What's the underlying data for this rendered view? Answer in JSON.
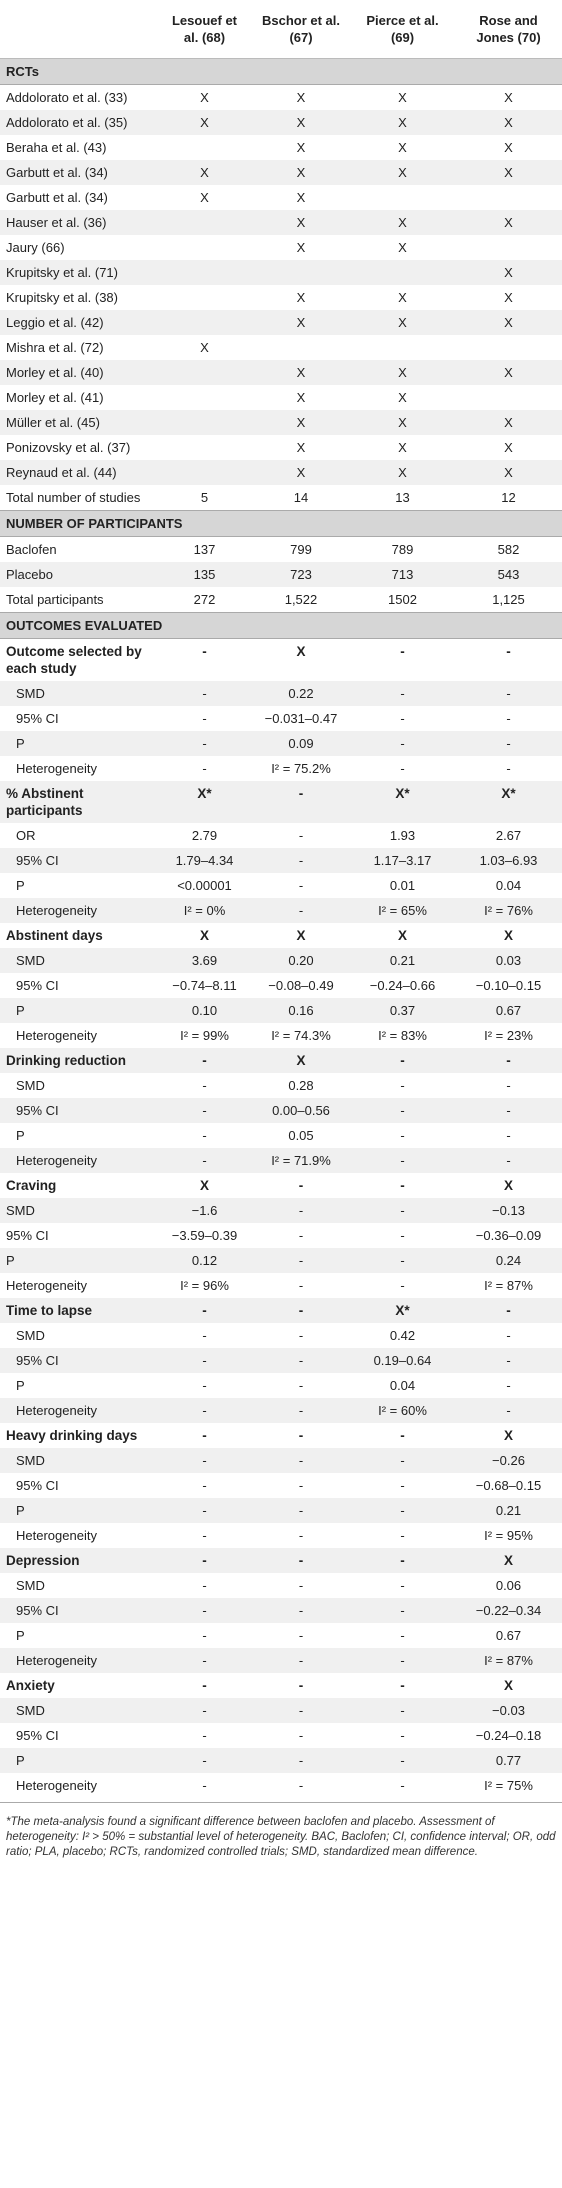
{
  "table": {
    "column_headers": [
      "Lesouef et al. (68)",
      "Bschor et al. (67)",
      "Pierce et al. (69)",
      "Rose and Jones (70)"
    ],
    "sections": [
      {
        "title": "RCTs",
        "rows": [
          {
            "label": "Addolorato et al. (33)",
            "cells": [
              "X",
              "X",
              "X",
              "X"
            ]
          },
          {
            "label": "Addolorato et al. (35)",
            "cells": [
              "X",
              "X",
              "X",
              "X"
            ]
          },
          {
            "label": "Beraha et al. (43)",
            "cells": [
              null,
              "X",
              "X",
              "X"
            ]
          },
          {
            "label": "Garbutt et al. (34)",
            "cells": [
              "X",
              "X",
              "X",
              "X"
            ]
          },
          {
            "label": "Garbutt et al. (34)",
            "cells": [
              "X",
              "X",
              null,
              null
            ]
          },
          {
            "label": "Hauser et al. (36)",
            "cells": [
              null,
              "X",
              "X",
              "X"
            ]
          },
          {
            "label": "Jaury (66)",
            "cells": [
              null,
              "X",
              "X",
              null
            ]
          },
          {
            "label": "Krupitsky et al. (71)",
            "cells": [
              null,
              null,
              null,
              "X"
            ]
          },
          {
            "label": "Krupitsky et al. (38)",
            "cells": [
              null,
              "X",
              "X",
              "X"
            ]
          },
          {
            "label": "Leggio et al. (42)",
            "cells": [
              null,
              "X",
              "X",
              "X"
            ]
          },
          {
            "label": "Mishra et al. (72)",
            "cells": [
              "X",
              null,
              null,
              null
            ]
          },
          {
            "label": "Morley et al. (40)",
            "cells": [
              null,
              "X",
              "X",
              "X"
            ]
          },
          {
            "label": "Morley et al. (41)",
            "cells": [
              null,
              "X",
              "X",
              null
            ]
          },
          {
            "label": "Müller et al. (45)",
            "cells": [
              null,
              "X",
              "X",
              "X"
            ]
          },
          {
            "label": "Ponizovsky et al. (37)",
            "cells": [
              null,
              "X",
              "X",
              "X"
            ]
          },
          {
            "label": "Reynaud et al. (44)",
            "cells": [
              null,
              "X",
              "X",
              "X"
            ]
          },
          {
            "label": "Total number of studies",
            "cells": [
              "5",
              "14",
              "13",
              "12"
            ]
          }
        ]
      },
      {
        "title": "NUMBER OF PARTICIPANTS",
        "rows": [
          {
            "label": "Baclofen",
            "cells": [
              "137",
              "799",
              "789",
              "582"
            ]
          },
          {
            "label": "Placebo",
            "cells": [
              "135",
              "723",
              "713",
              "543"
            ]
          },
          {
            "label": "Total participants",
            "cells": [
              "272",
              "1,522",
              "1502",
              "1,125"
            ]
          }
        ]
      },
      {
        "title": "OUTCOMES EVALUATED",
        "groups": [
          {
            "label": "Outcome selected by each study",
            "cells": [
              "-",
              "X",
              "-",
              "-"
            ],
            "rows": [
              {
                "label": "SMD",
                "cells": [
                  "-",
                  "0.22",
                  "-",
                  "-"
                ]
              },
              {
                "label": "95% CI",
                "cells": [
                  "-",
                  "−0.031–0.47",
                  "-",
                  "-"
                ]
              },
              {
                "label": "P",
                "cells": [
                  "-",
                  "0.09",
                  "-",
                  "-"
                ]
              },
              {
                "label": "Heterogeneity",
                "cells": [
                  "-",
                  "I² = 75.2%",
                  "-",
                  "-"
                ]
              }
            ]
          },
          {
            "label": "% Abstinent participants",
            "cells": [
              "X*",
              "-",
              "X*",
              "X*"
            ],
            "rows": [
              {
                "label": "OR",
                "cells": [
                  "2.79",
                  "-",
                  "1.93",
                  "2.67"
                ]
              },
              {
                "label": "95% CI",
                "cells": [
                  "1.79–4.34",
                  "-",
                  "1.17–3.17",
                  "1.03–6.93"
                ]
              },
              {
                "label": "P",
                "cells": [
                  "<0.00001",
                  "-",
                  "0.01",
                  "0.04"
                ]
              },
              {
                "label": "Heterogeneity",
                "cells": [
                  "I² = 0%",
                  "-",
                  "I² = 65%",
                  "I² = 76%"
                ]
              }
            ]
          },
          {
            "label": "Abstinent days",
            "cells": [
              "X",
              "X",
              "X",
              "X"
            ],
            "rows": [
              {
                "label": "SMD",
                "cells": [
                  "3.69",
                  "0.20",
                  "0.21",
                  "0.03"
                ]
              },
              {
                "label": "95% CI",
                "cells": [
                  "−0.74–8.11",
                  "−0.08–0.49",
                  "−0.24–0.66",
                  "−0.10–0.15"
                ]
              },
              {
                "label": "P",
                "cells": [
                  "0.10",
                  "0.16",
                  "0.37",
                  "0.67"
                ]
              },
              {
                "label": "Heterogeneity",
                "cells": [
                  "I² = 99%",
                  "I² = 74.3%",
                  "I² = 83%",
                  "I² = 23%"
                ]
              }
            ]
          },
          {
            "label": "Drinking reduction",
            "cells": [
              "-",
              "X",
              "-",
              "-"
            ],
            "rows": [
              {
                "label": "SMD",
                "cells": [
                  "-",
                  "0.28",
                  "-",
                  "-"
                ]
              },
              {
                "label": "95% CI",
                "cells": [
                  "-",
                  "0.00–0.56",
                  "-",
                  "-"
                ]
              },
              {
                "label": "P",
                "cells": [
                  "-",
                  "0.05",
                  "-",
                  "-"
                ]
              },
              {
                "label": "Heterogeneity",
                "cells": [
                  "-",
                  "I² = 71.9%",
                  "-",
                  "-"
                ]
              }
            ]
          },
          {
            "label": "Craving",
            "cells": [
              "X",
              "-",
              "-",
              "X"
            ],
            "rows": [
              {
                "label": "SMD",
                "cells": [
                  "−1.6",
                  "-",
                  "-",
                  "−0.13"
                ]
              },
              {
                "label": "95% CI",
                "cells": [
                  "−3.59–0.39",
                  "-",
                  "-",
                  "−0.36–0.09"
                ]
              },
              {
                "label": "P",
                "cells": [
                  "0.12",
                  "-",
                  "-",
                  "0.24"
                ]
              },
              {
                "label": "Heterogeneity",
                "cells": [
                  "I² = 96%",
                  "-",
                  "-",
                  "I² = 87%"
                ]
              }
            ]
          },
          {
            "label": "Time to lapse",
            "cells": [
              "-",
              "-",
              "X*",
              "-"
            ],
            "rows": [
              {
                "label": "SMD",
                "cells": [
                  "-",
                  "-",
                  "0.42",
                  "-"
                ]
              },
              {
                "label": "95% CI",
                "cells": [
                  "-",
                  "-",
                  "0.19–0.64",
                  "-"
                ]
              },
              {
                "label": "P",
                "cells": [
                  "-",
                  "-",
                  "0.04",
                  "-"
                ]
              },
              {
                "label": "Heterogeneity",
                "cells": [
                  "-",
                  "-",
                  "I² = 60%",
                  "-"
                ]
              }
            ]
          },
          {
            "label": "Heavy drinking days",
            "cells": [
              "-",
              "-",
              "-",
              "X"
            ],
            "rows": [
              {
                "label": "SMD",
                "cells": [
                  "-",
                  "-",
                  "-",
                  "−0.26"
                ]
              },
              {
                "label": "95% CI",
                "cells": [
                  "-",
                  "-",
                  "-",
                  "−0.68–0.15"
                ]
              },
              {
                "label": "P",
                "cells": [
                  "-",
                  "-",
                  "-",
                  "0.21"
                ]
              },
              {
                "label": "Heterogeneity",
                "cells": [
                  "-",
                  "-",
                  "-",
                  "I² = 95%"
                ]
              }
            ]
          },
          {
            "label": "Depression",
            "cells": [
              "-",
              "-",
              "-",
              "X"
            ],
            "rows": [
              {
                "label": "SMD",
                "cells": [
                  "-",
                  "-",
                  "-",
                  "0.06"
                ]
              },
              {
                "label": "95% CI",
                "cells": [
                  "-",
                  "-",
                  "-",
                  "−0.22–0.34"
                ]
              },
              {
                "label": "P",
                "cells": [
                  "-",
                  "-",
                  "-",
                  "0.67"
                ]
              },
              {
                "label": "Heterogeneity",
                "cells": [
                  "-",
                  "-",
                  "-",
                  "I² = 87%"
                ]
              }
            ]
          },
          {
            "label": "Anxiety",
            "cells": [
              "-",
              "-",
              "-",
              "X"
            ],
            "rows": [
              {
                "label": "SMD",
                "cells": [
                  "-",
                  "-",
                  "-",
                  "−0.03"
                ]
              },
              {
                "label": "95% CI",
                "cells": [
                  "-",
                  "-",
                  "-",
                  "−0.24–0.18"
                ]
              },
              {
                "label": "P",
                "cells": [
                  "-",
                  "-",
                  "-",
                  "0.77"
                ]
              },
              {
                "label": "Heterogeneity",
                "cells": [
                  "-",
                  "-",
                  "-",
                  "I² = 75%"
                ]
              }
            ]
          }
        ]
      }
    ],
    "footnote": "*The meta-analysis found a significant difference between baclofen and placebo. Assessment of heterogeneity: I² > 50% = substantial level of heterogeneity. BAC, Baclofen; CI, confidence interval; OR, odd ratio; PLA, placebo; RCTs, randomized controlled trials; SMD, standardized mean difference."
  }
}
